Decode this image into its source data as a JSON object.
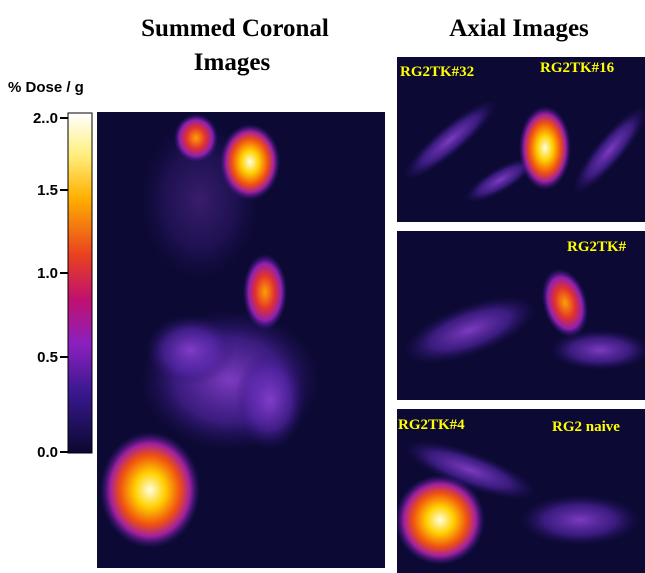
{
  "header": {
    "left_title_line1": "Summed Coronal",
    "left_title_line2": "Images",
    "right_title": "Axial Images"
  },
  "colorbar": {
    "label": "% Dose / g",
    "ticks": [
      "2..0",
      "1.5",
      "1.0",
      "0.5",
      "0.0"
    ]
  },
  "axial": {
    "panel1": {
      "left_label": "RG2TK#32",
      "right_label": "RG2TK#16"
    },
    "panel2": {
      "right_label": "RG2TK#"
    },
    "panel3": {
      "left_label": "RG2TK#4",
      "right_label": "RG2 naive"
    }
  }
}
